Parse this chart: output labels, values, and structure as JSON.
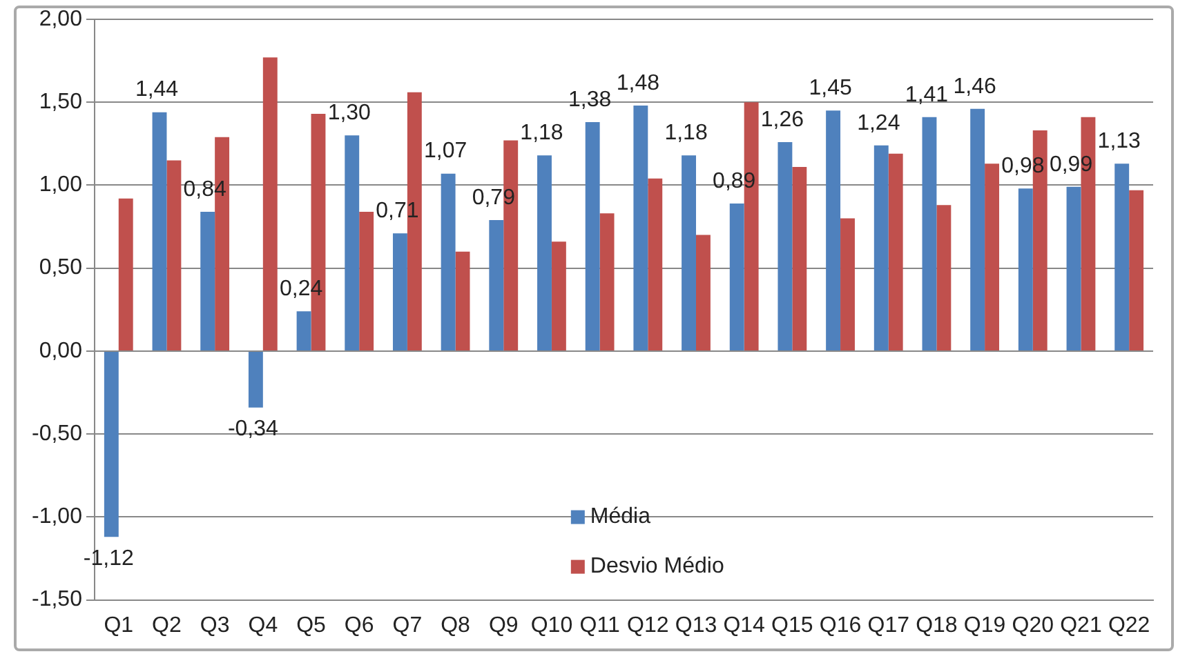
{
  "chart_data": {
    "type": "bar",
    "categories": [
      "Q1",
      "Q2",
      "Q3",
      "Q4",
      "Q5",
      "Q6",
      "Q7",
      "Q8",
      "Q9",
      "Q10",
      "Q11",
      "Q12",
      "Q13",
      "Q14",
      "Q15",
      "Q16",
      "Q17",
      "Q18",
      "Q19",
      "Q20",
      "Q21",
      "Q22"
    ],
    "series": [
      {
        "name": "Média",
        "color": "#4f81bd",
        "values": [
          -1.12,
          1.44,
          0.84,
          -0.34,
          0.24,
          1.3,
          0.71,
          1.07,
          0.79,
          1.18,
          1.38,
          1.48,
          1.18,
          0.89,
          1.26,
          1.45,
          1.24,
          1.41,
          1.46,
          0.98,
          0.99,
          1.13
        ],
        "value_labels": [
          "-1,12",
          "1,44",
          "0,84",
          "-0,34",
          "0,24",
          "1,30",
          "0,71",
          "1,07",
          "0,79",
          "1,18",
          "1,38",
          "1,48",
          "1,18",
          "0,89",
          "1,26",
          "1,45",
          "1,24",
          "1,41",
          "1,46",
          "0,98",
          "0,99",
          "1,13"
        ]
      },
      {
        "name": "Desvio Médio",
        "color": "#c0504d",
        "values": [
          0.92,
          1.15,
          1.29,
          1.77,
          1.43,
          0.84,
          1.56,
          0.6,
          1.27,
          0.66,
          0.83,
          1.04,
          0.7,
          1.5,
          1.11,
          0.8,
          1.19,
          0.88,
          1.13,
          1.33,
          1.41,
          0.97
        ]
      }
    ],
    "ylim": [
      -1.5,
      2
    ],
    "yticks": [
      {
        "value": -1.5,
        "label": "-1,50"
      },
      {
        "value": -1,
        "label": "-1,00"
      },
      {
        "value": -0.5,
        "label": "-0,50"
      },
      {
        "value": 0,
        "label": "0,00"
      },
      {
        "value": 0.5,
        "label": "0,50"
      },
      {
        "value": 1,
        "label": "1,00"
      },
      {
        "value": 1.5,
        "label": "1,50"
      },
      {
        "value": 2,
        "label": "2,00"
      }
    ],
    "grid": "y",
    "legend": "bottom"
  }
}
